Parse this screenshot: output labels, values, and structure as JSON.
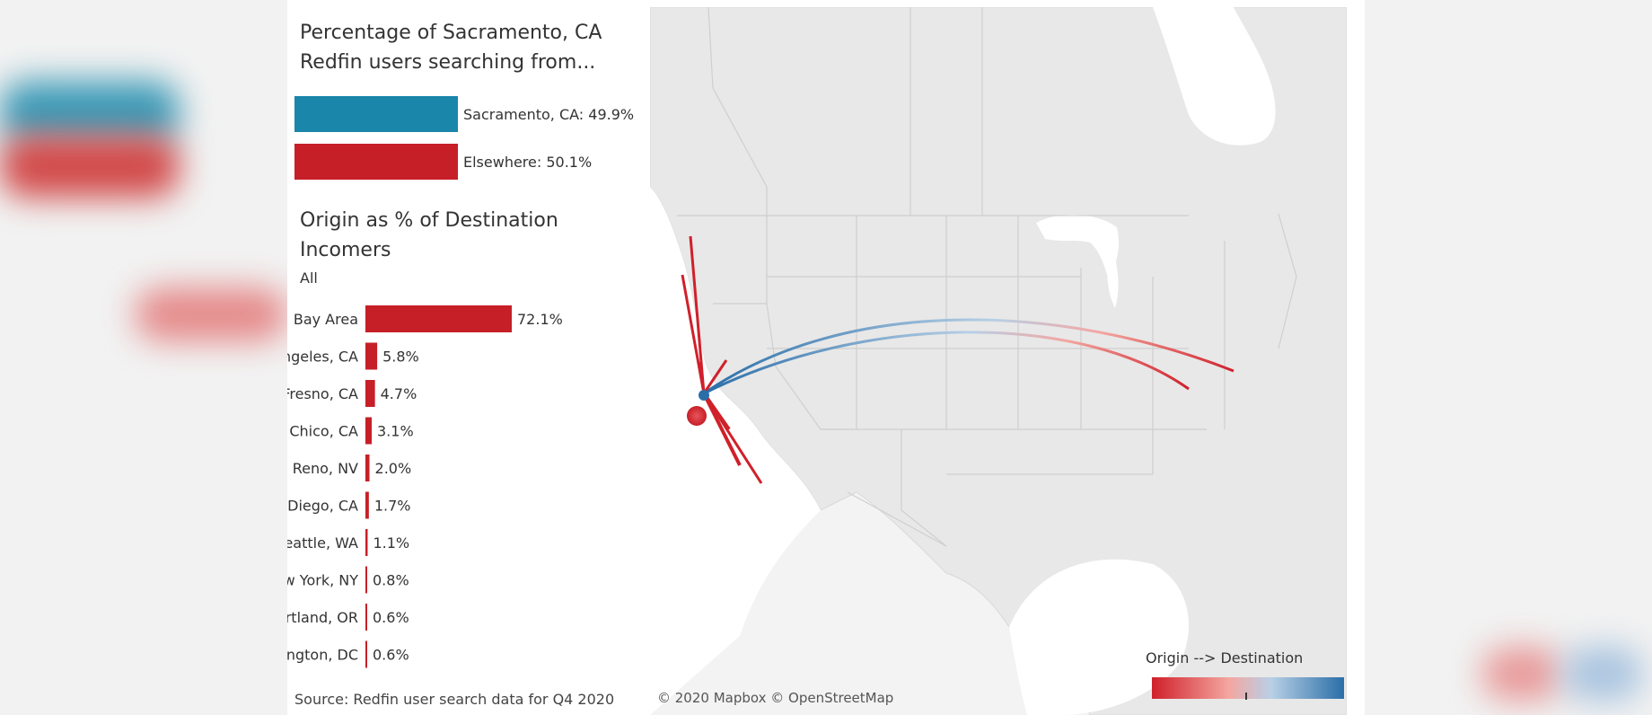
{
  "colors": {
    "sacramento": "#1a86a9",
    "elsewhere": "#c61f27",
    "bar": "#c61f27",
    "origin": "#d0202a",
    "destination": "#2a6ea8"
  },
  "share": {
    "title_line1": "Percentage of Sacramento, CA",
    "title_line2": "Redfin users searching from...",
    "sacramento_label": "Sacramento, CA: 49.9%",
    "elsewhere_label": "Elsewhere: 50.1%"
  },
  "origin": {
    "title_line1": "Origin as % of Destination",
    "title_line2": "Incomers",
    "filter": "All"
  },
  "chart_data": [
    {
      "type": "bar",
      "orientation": "horizontal",
      "title": "Percentage of Sacramento, CA Redfin users searching from...",
      "categories": [
        "Sacramento, CA",
        "Elsewhere"
      ],
      "values": [
        49.9,
        50.1
      ],
      "colors": [
        "#1a86a9",
        "#c61f27"
      ]
    },
    {
      "type": "bar",
      "orientation": "horizontal",
      "title": "Origin as % of Destination Incomers",
      "subtitle": "All",
      "categories": [
        "Bay Area",
        "Los Angeles, CA",
        "Fresno, CA",
        "Chico, CA",
        "Reno, NV",
        "San Diego, CA",
        "Seattle, WA",
        "New York, NY",
        "Portland, OR",
        "Washington, DC"
      ],
      "values": [
        72.1,
        5.8,
        4.7,
        3.1,
        2.0,
        1.7,
        1.1,
        0.8,
        0.6,
        0.6
      ],
      "value_labels": [
        "72.1%",
        "5.8%",
        "4.7%",
        "3.1%",
        "2.0%",
        "1.7%",
        "1.1%",
        "0.8%",
        "0.6%",
        "0.6%"
      ]
    }
  ],
  "source": "Source: Redfin user search data for Q4 2020",
  "map": {
    "attribution": "© 2020 Mapbox  © OpenStreetMap",
    "legend_title": "Origin --> Destination"
  }
}
